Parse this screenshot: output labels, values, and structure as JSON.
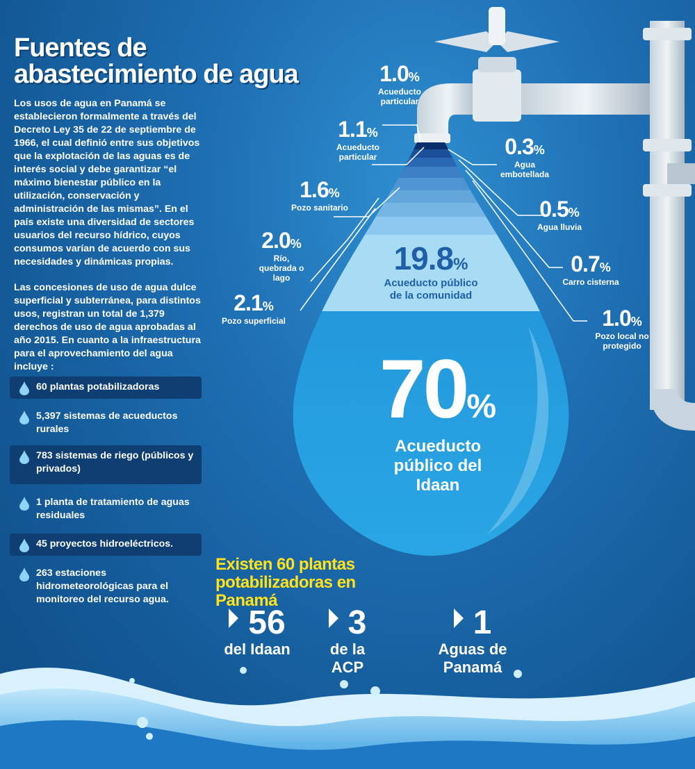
{
  "title": "Fuentes de abastecimiento de agua",
  "intro_paragraph": "Los usos de agua en Panamá se establecieron formalmente a través del Decreto Ley 35 de 22 de septiembre de 1966, el cual definió entre sus objetivos que la explotación de las aguas es de interés social y debe garantizar “el máximo bienestar público en la utilización, conservación y administración de las mismas”. En el país existe una diversidad de sectores usuarios del recurso hídrico, cuyos consumos varían de acuerdo con sus necesidades y dinámicas propias.",
  "concessions_paragraph": "Las concesiones de uso de agua dulce superficial y subterránea, para distintos usos, registran un total de 1,379 derechos de uso de agua aprobadas al año 2015. En cuanto a la infraestructura para el aprovechamiento del agua incluye :",
  "infrastructure": [
    "60 plantas potabilizadoras",
    "5,397 sistemas de acueductos rurales",
    "783 sistemas de riego (públicos y privados)",
    "1 planta de tratamiento de aguas residuales",
    "45 proyectos hidroeléctricos.",
    "263 estaciones hidrometeorológicas para el monitoreo del recurso agua."
  ],
  "sources": [
    {
      "value": "1.0",
      "label": "Acueducto particular"
    },
    {
      "value": "1.1",
      "label": "Acueducto particular"
    },
    {
      "value": "0.3",
      "label": "Agua embotellada"
    },
    {
      "value": "1.6",
      "label": "Pozo sanitario"
    },
    {
      "value": "0.5",
      "label": "Agua lluvia"
    },
    {
      "value": "2.0",
      "label": "Río, quebrada o lago"
    },
    {
      "value": "0.7",
      "label": "Carro cisterna"
    },
    {
      "value": "2.1",
      "label": "Pozo superficial"
    },
    {
      "value": "1.0",
      "label": "Pozo local no protegido"
    },
    {
      "value": "19.8",
      "label": "Acueducto público de la comunidad"
    },
    {
      "value": "70",
      "label": "Acueducto público del Idaan"
    }
  ],
  "percent_sign": "%",
  "summary": {
    "title": "Existen 60 plantas potabilizadoras en Panamá",
    "items": [
      {
        "number": "56",
        "caption": "del Idaan"
      },
      {
        "number": "3",
        "caption": "de la ACP"
      },
      {
        "number": "1",
        "caption": "Aguas de Panamá"
      }
    ]
  },
  "colors": {
    "background": "#1e6fb3",
    "highlight_yellow": "#ffe21a",
    "drop_light": "#a8dcf5",
    "drop_main": "#2ea3e0"
  }
}
